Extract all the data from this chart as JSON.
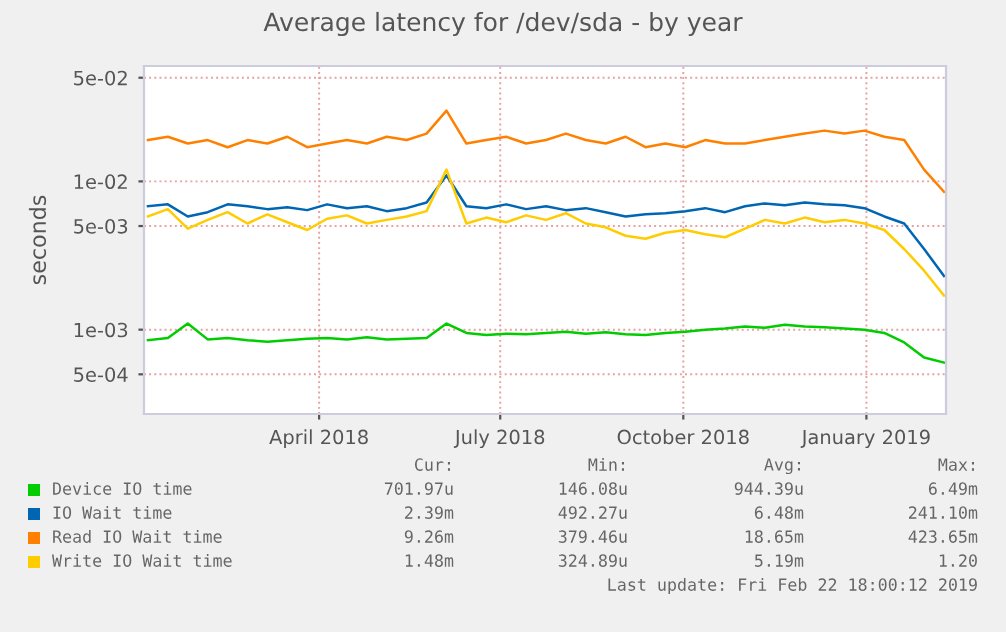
{
  "chart_data": {
    "type": "line",
    "title": "Average latency for /dev/sda - by year",
    "ylabel": "seconds",
    "log": "y",
    "grid": true,
    "legend": "bottom",
    "marker": "none",
    "line_style": "solid",
    "x": [
      "2018-01-05",
      "2018-01-15",
      "2018-01-25",
      "2018-02-04",
      "2018-02-14",
      "2018-02-24",
      "2018-03-06",
      "2018-03-16",
      "2018-03-26",
      "2018-04-05",
      "2018-04-15",
      "2018-04-25",
      "2018-05-05",
      "2018-05-15",
      "2018-05-25",
      "2018-06-04",
      "2018-06-14",
      "2018-06-24",
      "2018-07-04",
      "2018-07-14",
      "2018-07-24",
      "2018-08-03",
      "2018-08-13",
      "2018-08-23",
      "2018-09-02",
      "2018-09-12",
      "2018-09-22",
      "2018-10-02",
      "2018-10-12",
      "2018-10-22",
      "2018-11-01",
      "2018-11-11",
      "2018-11-21",
      "2018-12-01",
      "2018-12-11",
      "2018-12-21",
      "2018-12-31",
      "2019-01-10",
      "2019-01-20",
      "2019-01-30",
      "2019-02-09"
    ],
    "xlim": [
      "2018-01-03",
      "2019-02-10"
    ],
    "xticks": [
      {
        "value": "2018-04-01",
        "label": "April 2018"
      },
      {
        "value": "2018-07-01",
        "label": "July 2018"
      },
      {
        "value": "2018-10-01",
        "label": "October 2018"
      },
      {
        "value": "2019-01-01",
        "label": "January 2019"
      }
    ],
    "ylim": [
      0.00027,
      0.06
    ],
    "yticks": [
      {
        "value": 0.0005,
        "label": "5e-04"
      },
      {
        "value": 0.001,
        "label": "1e-03"
      },
      {
        "value": 0.005,
        "label": "5e-03"
      },
      {
        "value": 0.01,
        "label": "1e-02"
      },
      {
        "value": 0.05,
        "label": "5e-02"
      }
    ],
    "series": [
      {
        "name": "Device IO time",
        "color": "#00cc00",
        "values": [
          0.00085,
          0.00088,
          0.0011,
          0.00086,
          0.00088,
          0.00085,
          0.00083,
          0.00085,
          0.00087,
          0.00088,
          0.00086,
          0.00089,
          0.00086,
          0.00087,
          0.00088,
          0.0011,
          0.00095,
          0.00092,
          0.00094,
          0.00093,
          0.00095,
          0.00097,
          0.00094,
          0.00096,
          0.00093,
          0.00092,
          0.00095,
          0.00097,
          0.001,
          0.00102,
          0.00105,
          0.00103,
          0.00108,
          0.00105,
          0.00104,
          0.00102,
          0.001,
          0.00095,
          0.00082,
          0.00065,
          0.0006
        ]
      },
      {
        "name": "IO Wait time",
        "color": "#0066b3",
        "values": [
          0.0068,
          0.007,
          0.0058,
          0.0062,
          0.007,
          0.0068,
          0.0065,
          0.0067,
          0.0064,
          0.007,
          0.0066,
          0.0068,
          0.0063,
          0.0066,
          0.0072,
          0.011,
          0.0068,
          0.0066,
          0.007,
          0.0065,
          0.0068,
          0.0064,
          0.0066,
          0.0062,
          0.0058,
          0.006,
          0.0061,
          0.0063,
          0.0066,
          0.0062,
          0.0068,
          0.0071,
          0.0069,
          0.0072,
          0.007,
          0.0069,
          0.0066,
          0.0058,
          0.0052,
          0.0035,
          0.0023
        ]
      },
      {
        "name": "Read IO Wait time",
        "color": "#ff8000",
        "values": [
          0.019,
          0.02,
          0.018,
          0.019,
          0.017,
          0.019,
          0.018,
          0.02,
          0.017,
          0.018,
          0.019,
          0.018,
          0.02,
          0.019,
          0.021,
          0.03,
          0.018,
          0.019,
          0.02,
          0.018,
          0.019,
          0.021,
          0.019,
          0.018,
          0.02,
          0.017,
          0.018,
          0.017,
          0.019,
          0.018,
          0.018,
          0.019,
          0.02,
          0.021,
          0.022,
          0.021,
          0.022,
          0.02,
          0.019,
          0.012,
          0.0085
        ]
      },
      {
        "name": "Write IO Wait time",
        "color": "#ffcc00",
        "values": [
          0.0058,
          0.0065,
          0.0048,
          0.0055,
          0.0062,
          0.0052,
          0.006,
          0.0053,
          0.0047,
          0.0056,
          0.0059,
          0.0052,
          0.0055,
          0.0058,
          0.0063,
          0.012,
          0.0052,
          0.0057,
          0.0053,
          0.0059,
          0.0055,
          0.0061,
          0.0052,
          0.0049,
          0.0043,
          0.0041,
          0.0045,
          0.0047,
          0.0044,
          0.0042,
          0.0048,
          0.0055,
          0.0052,
          0.0057,
          0.0053,
          0.0055,
          0.0052,
          0.0047,
          0.0035,
          0.0025,
          0.0017
        ]
      }
    ],
    "annotations": [
      "Cur:",
      "Min:",
      "Avg:",
      "Max:",
      "701.97u",
      "146.08u",
      "944.39u",
      "6.49m",
      "2.39m",
      "492.27u",
      "6.48m",
      "241.10m",
      "9.26m",
      "379.46u",
      "18.65m",
      "423.65m",
      "1.48m",
      "324.89u",
      "5.19m",
      "1.20",
      "Last update: Fri Feb 22 18:00:12 2019"
    ]
  }
}
